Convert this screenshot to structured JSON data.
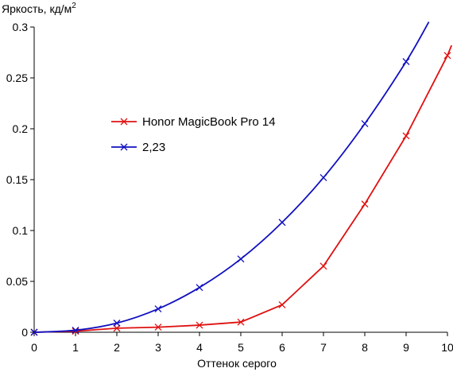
{
  "chart_data": {
    "type": "line",
    "title": "",
    "ylabel": "Яркость, кд/м",
    "ylabel_sup": "2",
    "xlabel": "Оттенок серого",
    "xlim": [
      0,
      10
    ],
    "ylim": [
      0,
      0.3
    ],
    "x_ticks": [
      "0",
      "1",
      "2",
      "3",
      "4",
      "5",
      "6",
      "7",
      "8",
      "9",
      "10"
    ],
    "y_ticks": [
      "0",
      "0.05",
      "0.1",
      "0.15",
      "0.2",
      "0.25",
      "0.3"
    ],
    "grid": false,
    "legend_position": "center-left",
    "series": [
      {
        "name": "Honor MagicBook Pro 14",
        "color": "#e01010",
        "x": [
          0,
          1,
          2,
          3,
          4,
          5,
          6,
          7,
          8,
          9,
          10,
          10.1
        ],
        "y": [
          0,
          0.001,
          0.004,
          0.005,
          0.007,
          0.01,
          0.027,
          0.065,
          0.126,
          0.193,
          0.272,
          0.282
        ],
        "markers_at": [
          0,
          1,
          2,
          3,
          4,
          5,
          6,
          7,
          8,
          9,
          10
        ]
      },
      {
        "name": "2,23",
        "color": "#1010c0",
        "x": [
          0,
          1,
          2,
          3,
          4,
          5,
          6,
          7,
          8,
          9,
          9.55
        ],
        "y": [
          0,
          0.002,
          0.009,
          0.023,
          0.044,
          0.072,
          0.108,
          0.152,
          0.205,
          0.266,
          0.305
        ],
        "markers_at": [
          0,
          1,
          2,
          3,
          4,
          5,
          6,
          7,
          8,
          9
        ]
      }
    ]
  }
}
